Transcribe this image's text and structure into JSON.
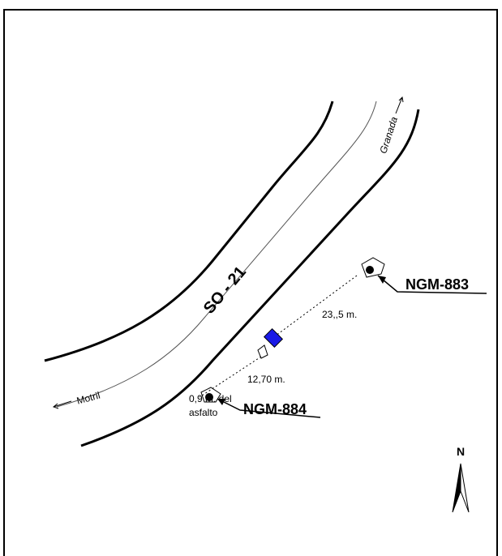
{
  "road": "SO - 21",
  "directions": {
    "north_east": "Granada",
    "south_west": "Motril"
  },
  "markers": [
    {
      "label": "NGM-883"
    },
    {
      "label": "NGM-884"
    }
  ],
  "distances": {
    "long": "23,,5 m.",
    "short": "12,70 m.",
    "offset_line1": "0,9 m. del",
    "offset_line2": "asfalto"
  },
  "compass": "N"
}
